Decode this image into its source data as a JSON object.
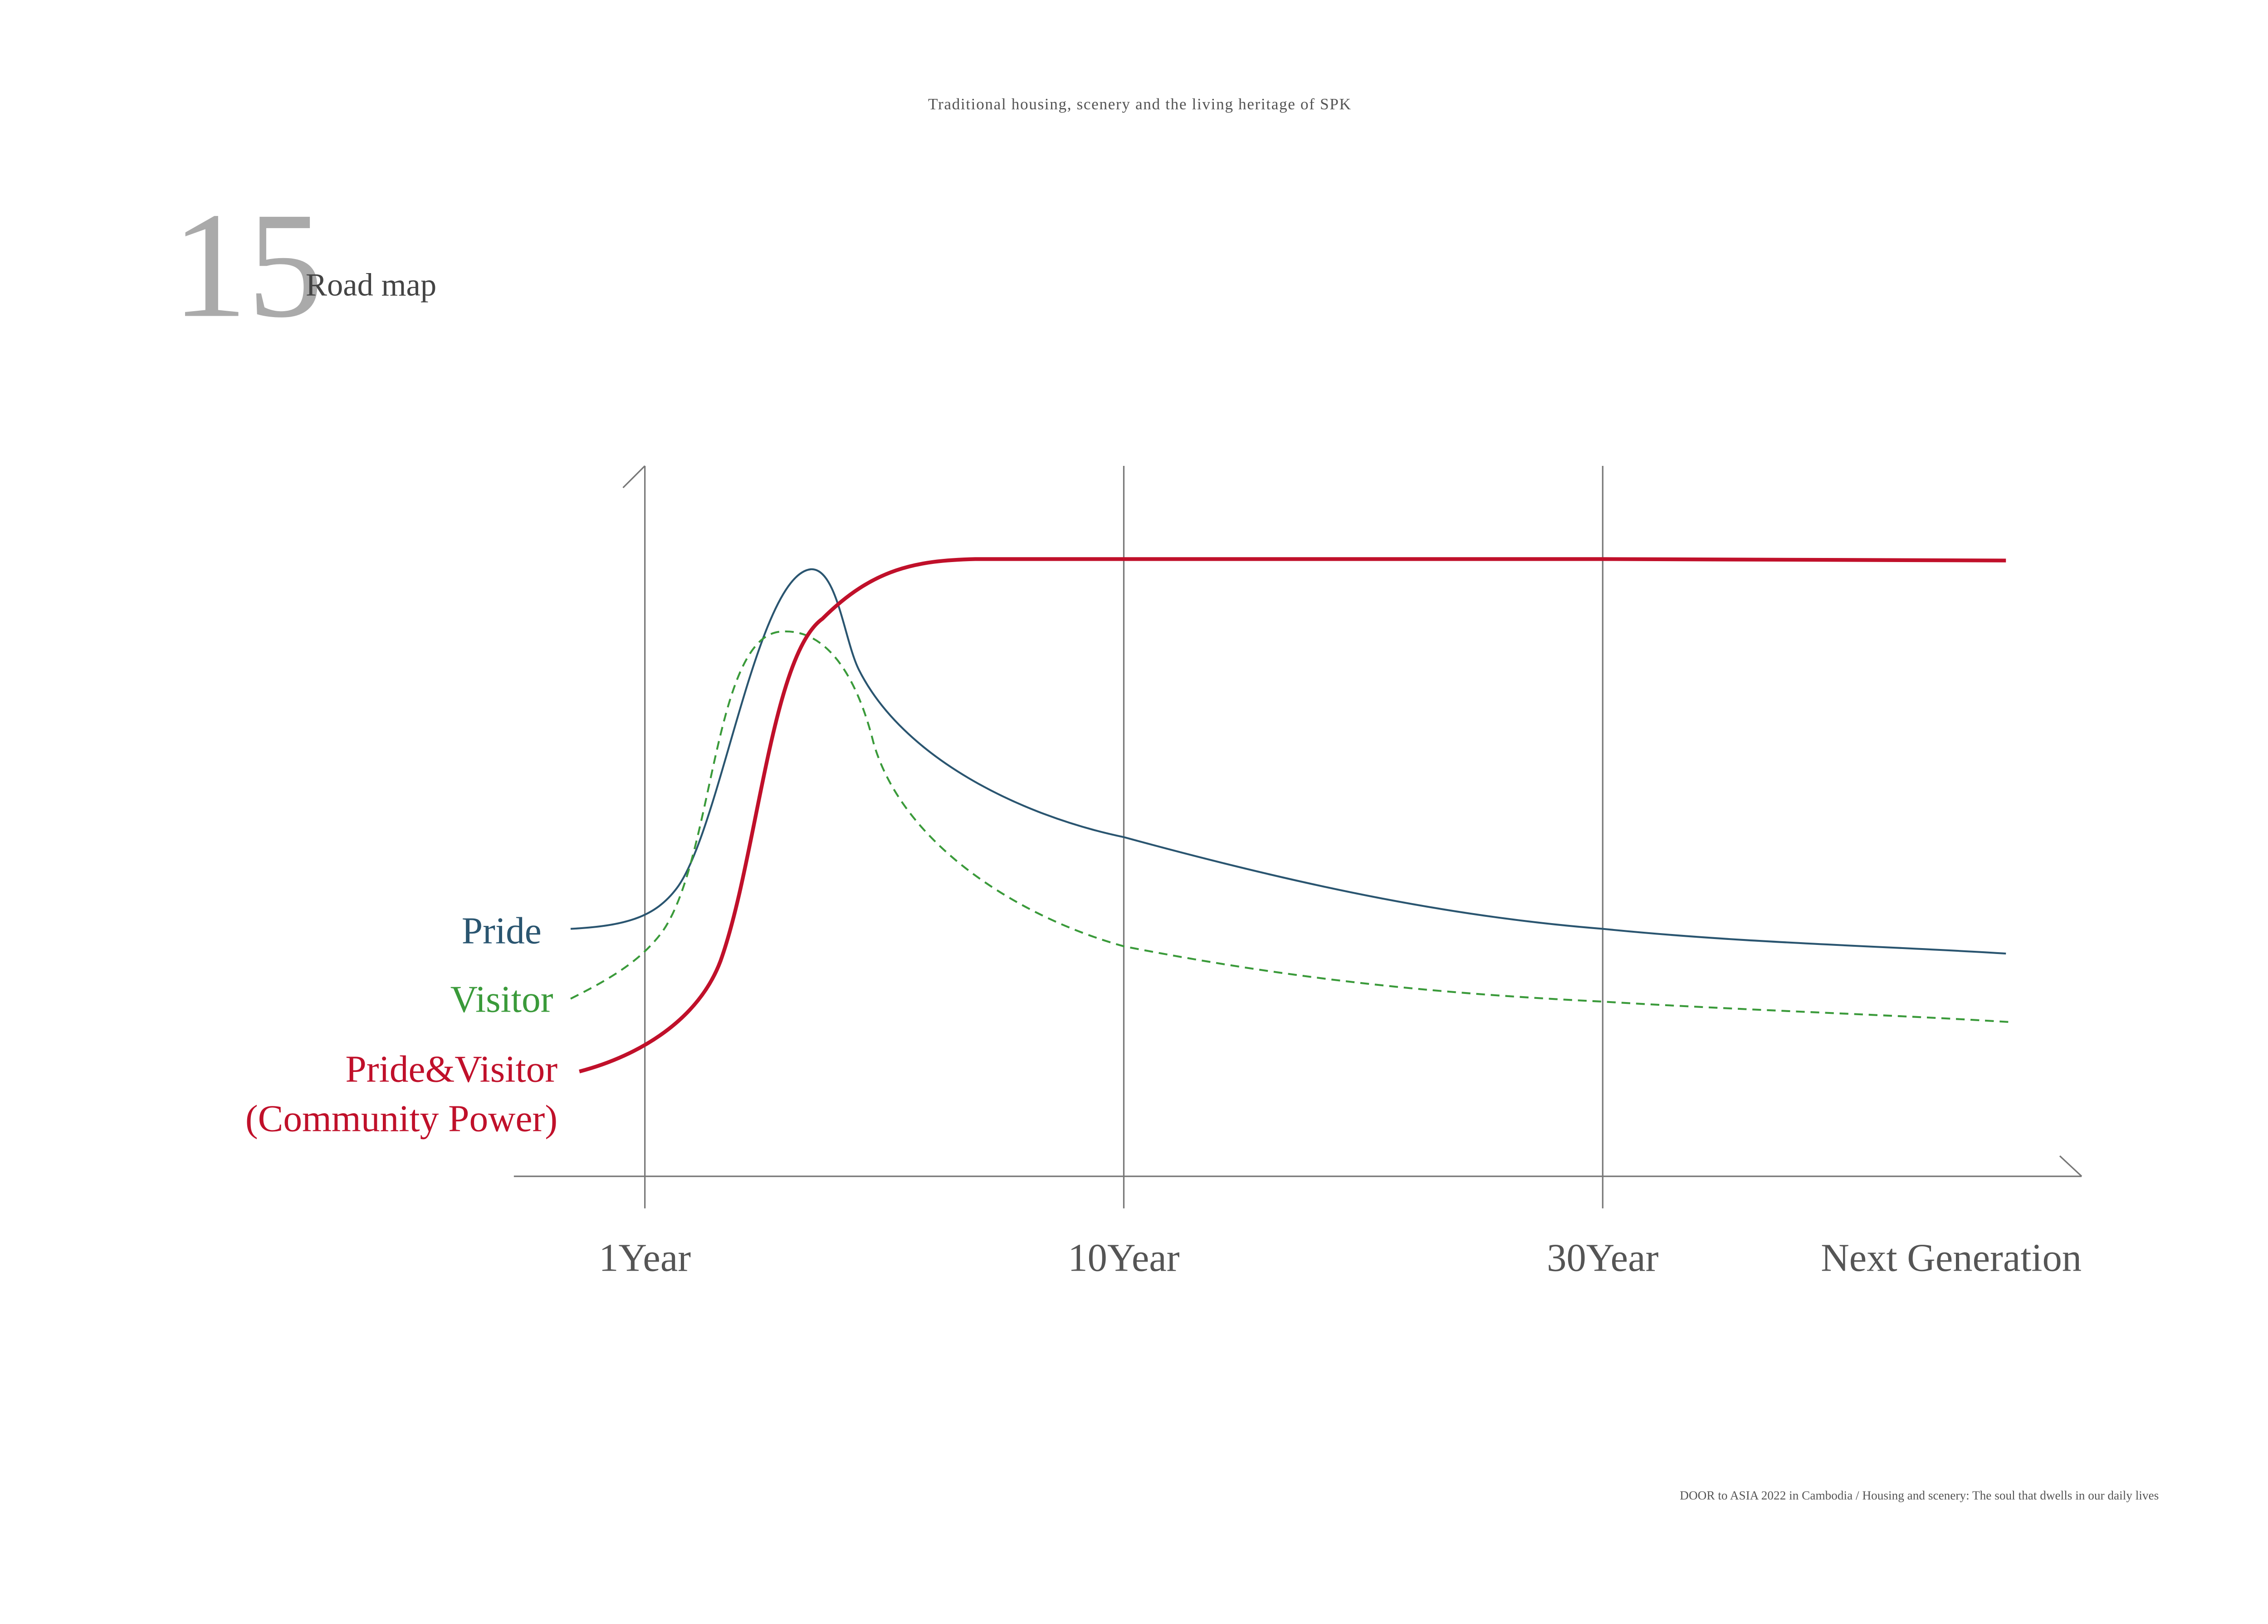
{
  "header": "Traditional housing, scenery and the living heritage of SPK",
  "section": {
    "number": "15",
    "title": "Road map"
  },
  "diagram": {
    "labels": [
      "Pride",
      "Visitor",
      "Pride&Visitor",
      "(Community Power)"
    ],
    "timeline": [
      "1Year",
      "10Year",
      "30Year",
      "Next Generation"
    ]
  },
  "footer": "DOOR to ASIA 2022 in Cambodia / Housing and scenery: The soul that dwells in our daily lives"
}
